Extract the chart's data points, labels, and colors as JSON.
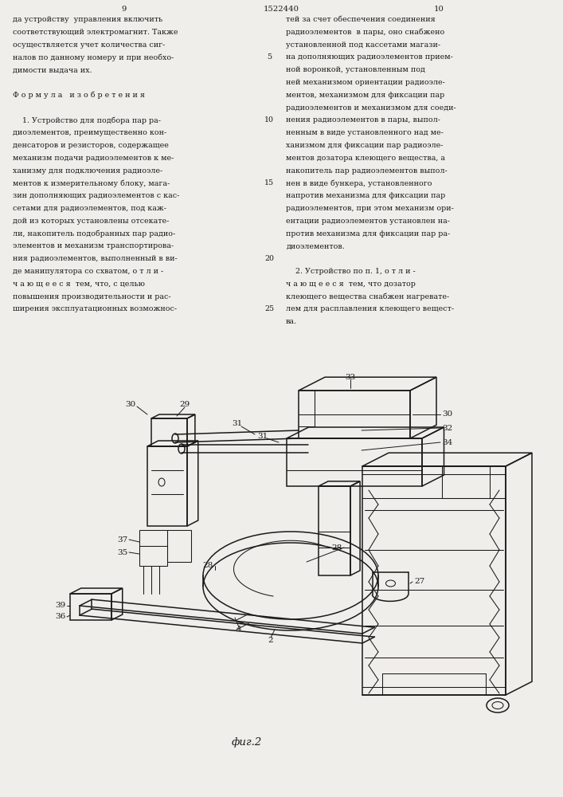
{
  "page_numbers": [
    "9",
    "1522440",
    "10"
  ],
  "left_col_lines": [
    "да устройству  управления включить",
    "соответствующий электромагнит. Также",
    "осуществляется учет количества сиг-",
    "налов по данному номеру и при необхо-",
    "димости выдача их.",
    "",
    "Ф о р м у л а   и з о б р е т е н и я",
    "",
    "    1. Устройство для подбора пар ра-",
    "диоэлементов, преимущественно кон-",
    "денсаторов и резисторов, содержащее",
    "механизм подачи радиоэлементов к ме-",
    "ханизму для подключения радиоэле-",
    "ментов к измерительному блоку, мага-",
    "зин дополняющих радиоэлементов с кас-",
    "сетами для радиоэлементов, под каж-",
    "дой из которых установлены отсекате-",
    "ли, накопитель подобранных пар радио-",
    "элементов и механизм транспортирова-",
    "ния радиоэлементов, выполненный в ви-",
    "де манипулятора со схватом, о т л и -",
    "ч а ю щ е е с я  тем, что, с целью",
    "повышения производительности и рас-",
    "ширения эксплуатационных возможнос-"
  ],
  "right_col_lines": [
    "тей за счет обеспечения соединения",
    "радиоэлементов  в пары, оно снабжено",
    "установленной под кассетами магази-",
    "на дополняющих радиоэлементов прием-",
    "ной воронкой, установленным под",
    "ней механизмом ориентации радиоэле-",
    "ментов, механизмом для фиксации пар",
    "радиоэлементов и механизмом для соеди-",
    "нения радиоэлементов в пары, выпол-",
    "ненным в виде установленного над ме-",
    "ханизмом для фиксации пар радиоэле-",
    "ментов дозатора клеющего вещества, а",
    "накопитель пар радиоэлементов выпол-",
    "нен в виде бункера, установленного",
    "напротив механизма для фиксации пар",
    "радиоэлементов, при этом механизм ори-",
    "ентации радиоэлементов установлен на-",
    "против механизма для фиксации пар ра-",
    "диоэлементов.",
    "",
    "    2. Устройство по п. 1, о т л и -",
    "ч а ю щ е е с я  тем, что дозатор",
    "клеющего вещества снабжен нагревате-",
    "лем для расплавления клеющего вещест-",
    "ва."
  ],
  "line_numbers": [
    5,
    10,
    15,
    20,
    25
  ],
  "line_number_rows": [
    3,
    8,
    13,
    19,
    23
  ],
  "caption": "фиг.2",
  "bg": "#f0eeea",
  "lc": "#1a1a1a"
}
